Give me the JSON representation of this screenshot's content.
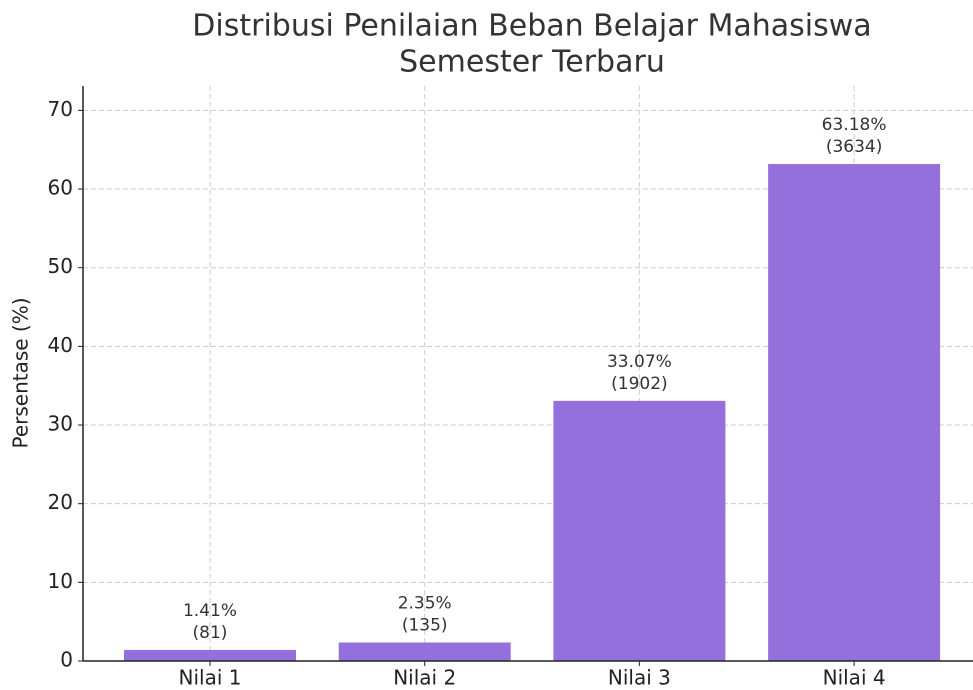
{
  "chart_data": {
    "type": "bar",
    "title": [
      "Distribusi Penilaian Beban Belajar Mahasiswa",
      "Semester Terbaru"
    ],
    "y_label": "Persentase (%)",
    "categories": [
      "Nilai 1",
      "Nilai 2",
      "Nilai 3",
      "Nilai 4"
    ],
    "values": [
      1.41,
      2.35,
      33.07,
      63.18
    ],
    "value_labels": [
      "1.41%",
      "2.35%",
      "33.07%",
      "63.18%"
    ],
    "count_labels": [
      "(81)",
      "(135)",
      "(1902)",
      "(3634)"
    ],
    "color": "#9370db",
    "ylim": [
      0,
      73.1
    ],
    "yticks": [
      0,
      10,
      20,
      30,
      40,
      50,
      60,
      70
    ],
    "grid": true
  }
}
